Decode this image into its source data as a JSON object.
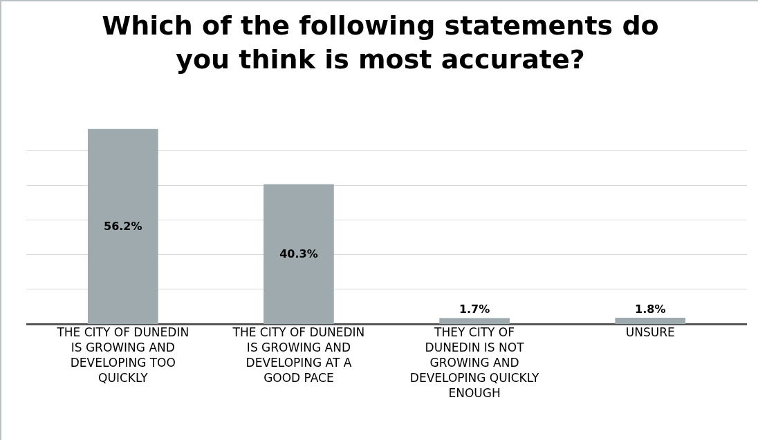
{
  "chart_data": {
    "type": "bar",
    "title": "Which of the following statements do you think is most accurate?",
    "categories": [
      "THE CITY OF DUNEDIN IS GROWING AND DEVELOPING TOO QUICKLY",
      "THE CITY OF DUNEDIN IS GROWING AND DEVELOPING AT A GOOD PACE",
      "THEY CITY OF DUNEDIN IS NOT GROWING AND DEVELOPING QUICKLY ENOUGH",
      "UNSURE"
    ],
    "values": [
      56.2,
      40.3,
      1.7,
      1.8
    ],
    "value_labels": [
      "56.2%",
      "40.3%",
      "1.7%",
      "1.8%"
    ],
    "color": "#9eaaad",
    "grid": "y",
    "tick_labels": "x"
  }
}
